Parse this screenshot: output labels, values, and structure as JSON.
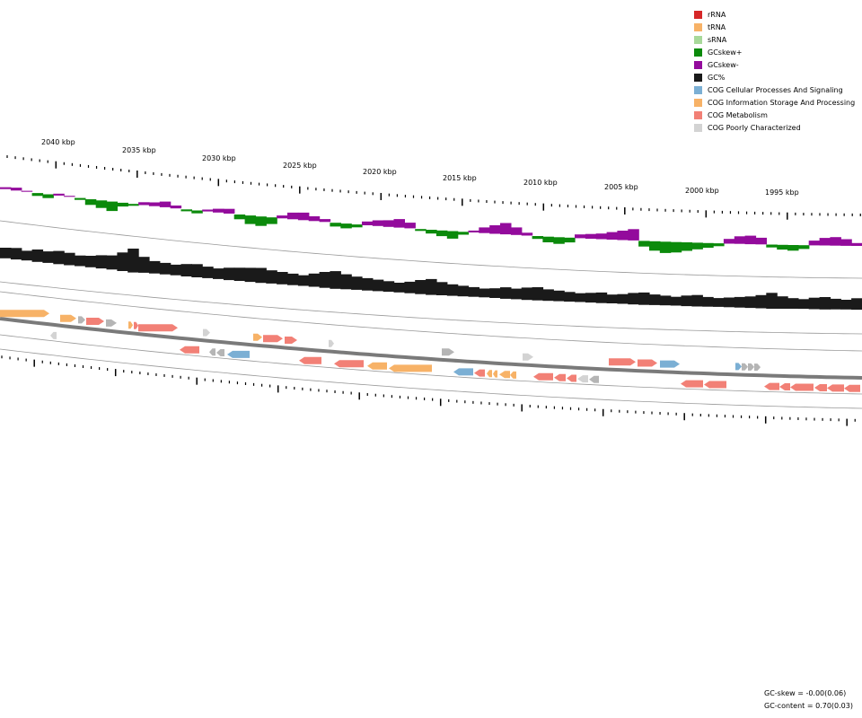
{
  "legend": {
    "items": [
      {
        "label": "rRNA",
        "color": "#d62728"
      },
      {
        "label": "tRNA",
        "color": "#f7b267"
      },
      {
        "label": "sRNA",
        "color": "#a8d99a"
      },
      {
        "label": "GCskew+",
        "color": "#0b8a0b"
      },
      {
        "label": "GCskew-",
        "color": "#930b9c"
      },
      {
        "label": "GC%",
        "color": "#1a1a1a"
      },
      {
        "label": "COG Cellular Processes And Signaling",
        "color": "#7bafd4"
      },
      {
        "label": "COG Information Storage And Processing",
        "color": "#f7b267"
      },
      {
        "label": "COG Metabolism",
        "color": "#f28076"
      },
      {
        "label": "COG Poorly Characterized",
        "color": "#d3d3d3"
      }
    ]
  },
  "axis": {
    "outer_ticks": [
      "2040 kbp",
      "2035 kbp",
      "2030 kbp",
      "2025 kbp",
      "2020 kbp",
      "2015 kbp",
      "2010 kbp",
      "2005 kbp",
      "2000 kbp",
      "1995 kbp"
    ]
  },
  "stats": {
    "gc_skew": "GC-skew = -0.00(0.06)",
    "gc_content": "GC-content = 0.70(0.03)"
  },
  "chart_data": {
    "type": "circular-genome-map",
    "visible_range_kbp": [
      1992,
      2043
    ],
    "tick_labels": [
      "2040 kbp",
      "2035 kbp",
      "2030 kbp",
      "2025 kbp",
      "2020 kbp",
      "2015 kbp",
      "2010 kbp",
      "2005 kbp",
      "2000 kbp",
      "1995 kbp"
    ],
    "tracks": [
      "GCskew",
      "GC%",
      "COG features (+ strand)",
      "COG features (- strand)"
    ],
    "gc_skew_mean": -0.0,
    "gc_skew_sd": 0.06,
    "gc_content_mean": 0.7,
    "gc_content_sd": 0.03
  }
}
